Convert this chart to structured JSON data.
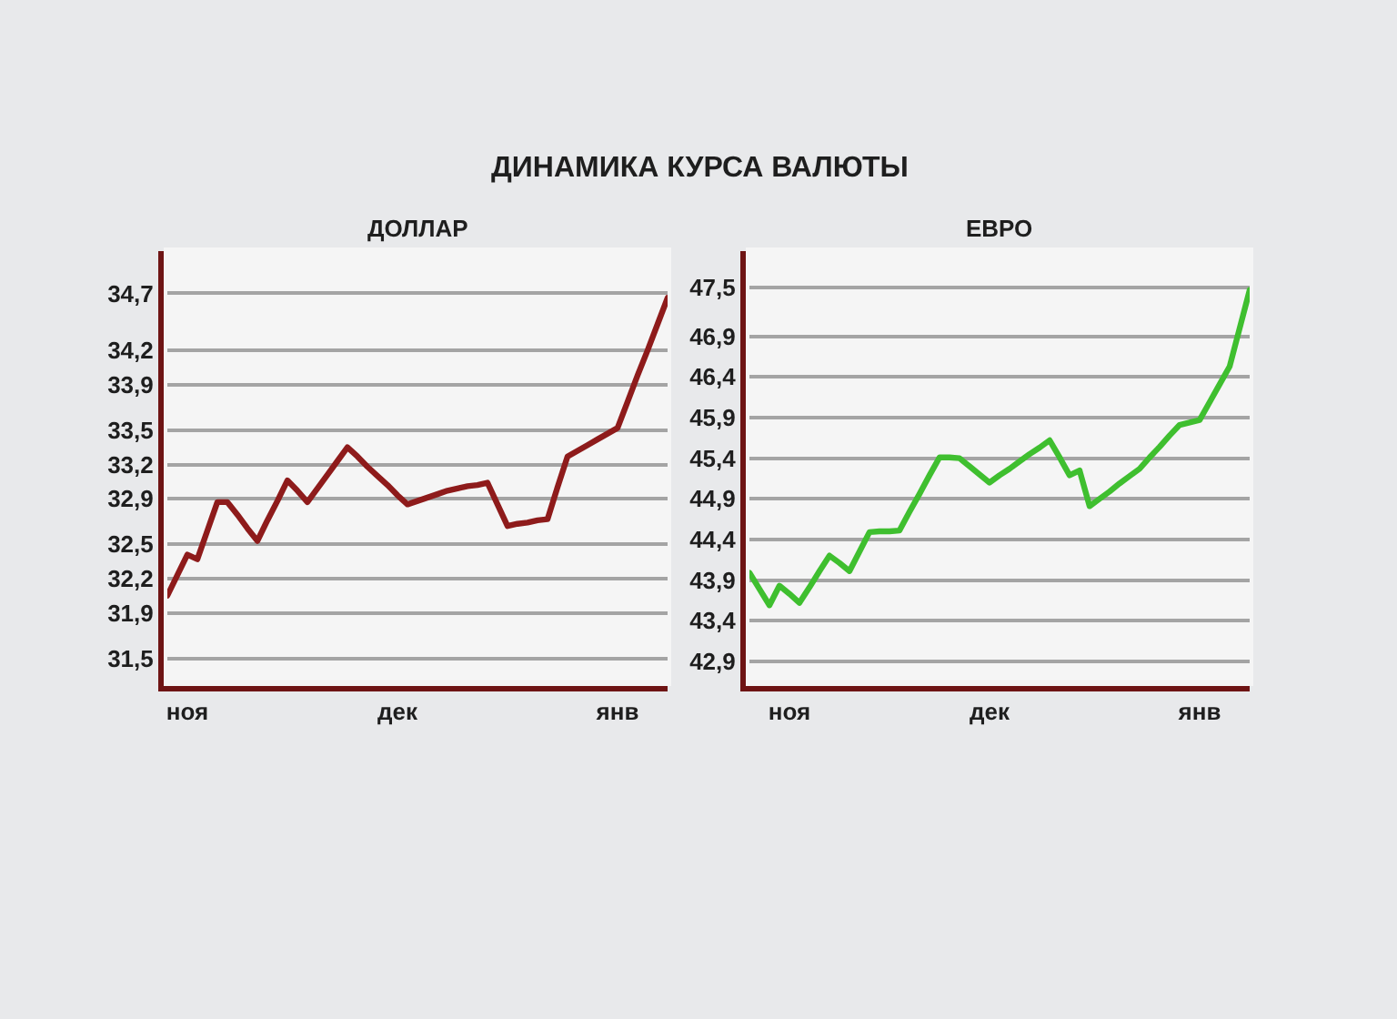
{
  "chart_data": [
    {
      "type": "line",
      "title": "ДОЛЛАР",
      "annotations": [
        "ДИНАМИКА КУРСА ВАЛЮТЫ"
      ],
      "categories": [
        null,
        null,
        "ноя",
        null,
        null,
        null,
        null,
        null,
        null,
        null,
        null,
        null,
        null,
        null,
        null,
        null,
        null,
        null,
        null,
        null,
        null,
        null,
        null,
        "дек",
        null,
        null,
        null,
        null,
        null,
        null,
        null,
        null,
        null,
        null,
        null,
        null,
        null,
        null,
        null,
        null,
        null,
        null,
        null,
        null,
        null,
        "янв",
        null,
        null,
        null,
        null,
        null
      ],
      "series": [
        {
          "color": "#8e1b1b",
          "values": [
            32.05,
            32.23,
            32.41,
            32.37,
            32.62,
            32.87,
            32.87,
            32.76,
            32.64,
            32.53,
            32.71,
            32.88,
            33.06,
            32.97,
            32.87,
            32.99,
            33.11,
            33.23,
            33.35,
            33.27,
            33.18,
            33.1,
            33.02,
            32.93,
            32.85,
            32.88,
            32.91,
            32.94,
            32.97,
            32.99,
            33.01,
            33.02,
            33.04,
            32.85,
            32.66,
            32.68,
            32.69,
            32.71,
            32.72,
            33.0,
            33.27,
            33.32,
            33.37,
            33.42,
            33.47,
            33.52,
            33.75,
            33.98,
            34.2,
            34.43,
            34.66
          ]
        }
      ],
      "ylim": [
        31.29,
        35.07
      ],
      "yticks": [
        {
          "value": 31.5,
          "label": "31,5"
        },
        {
          "value": 31.9,
          "label": "31,9"
        },
        {
          "value": 32.2,
          "label": "32,2"
        },
        {
          "value": 32.5,
          "label": "32,5"
        },
        {
          "value": 32.9,
          "label": "32,9"
        },
        {
          "value": 33.2,
          "label": "33,2"
        },
        {
          "value": 33.5,
          "label": "33,5"
        },
        {
          "value": 33.9,
          "label": "33,9"
        },
        {
          "value": 34.2,
          "label": "34,2"
        },
        {
          "value": 34.7,
          "label": "34,7"
        }
      ],
      "grid": "y"
    },
    {
      "type": "line",
      "title": "ЕВРО",
      "categories": [
        null,
        null,
        null,
        null,
        "ноя",
        null,
        null,
        null,
        null,
        null,
        null,
        null,
        null,
        null,
        null,
        null,
        null,
        null,
        null,
        null,
        null,
        null,
        null,
        null,
        "дек",
        null,
        null,
        null,
        null,
        null,
        null,
        null,
        null,
        null,
        null,
        null,
        null,
        null,
        null,
        null,
        null,
        null,
        null,
        null,
        null,
        "янв",
        null,
        null,
        null,
        null,
        null
      ],
      "series": [
        {
          "color": "#3fbf2f",
          "values": [
            43.99,
            43.79,
            43.59,
            43.83,
            43.73,
            43.62,
            43.81,
            44.01,
            44.2,
            44.11,
            44.01,
            44.25,
            44.49,
            44.5,
            44.5,
            44.51,
            44.74,
            44.96,
            45.19,
            45.41,
            45.41,
            45.4,
            45.3,
            45.2,
            45.1,
            45.19,
            45.27,
            45.36,
            45.45,
            45.53,
            45.62,
            45.41,
            45.19,
            45.25,
            44.81,
            44.9,
            44.99,
            45.09,
            45.18,
            45.27,
            45.41,
            45.54,
            45.68,
            45.81,
            45.84,
            45.87,
            46.09,
            46.31,
            46.53,
            47.0,
            47.47
          ]
        }
      ],
      "ylim": [
        42.64,
        47.95
      ],
      "yticks": [
        {
          "value": 42.9,
          "label": "42,9"
        },
        {
          "value": 43.4,
          "label": "43,4"
        },
        {
          "value": 43.9,
          "label": "43,9"
        },
        {
          "value": 44.4,
          "label": "44,4"
        },
        {
          "value": 44.9,
          "label": "44,9"
        },
        {
          "value": 45.4,
          "label": "45,4"
        },
        {
          "value": 45.9,
          "label": "45,9"
        },
        {
          "value": 46.4,
          "label": "46,4"
        },
        {
          "value": 46.9,
          "label": "46,9"
        },
        {
          "value": 47.5,
          "label": "47,5"
        }
      ],
      "grid": "y"
    }
  ]
}
